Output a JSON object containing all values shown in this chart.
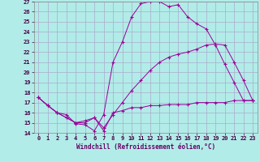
{
  "xlabel": "Windchill (Refroidissement éolien,°C)",
  "background_color": "#b2ece8",
  "grid_color": "#aaaacc",
  "line_color": "#990099",
  "xlim": [
    -0.5,
    23.5
  ],
  "ylim": [
    14,
    27
  ],
  "yticks": [
    14,
    15,
    16,
    17,
    18,
    19,
    20,
    21,
    22,
    23,
    24,
    25,
    26,
    27
  ],
  "xticks": [
    0,
    1,
    2,
    3,
    4,
    5,
    6,
    7,
    8,
    9,
    10,
    11,
    12,
    13,
    14,
    15,
    16,
    17,
    18,
    19,
    20,
    21,
    22,
    23
  ],
  "lines": [
    {
      "x": [
        0,
        1,
        2,
        3,
        4,
        5,
        6,
        7,
        8,
        9,
        10,
        11,
        12,
        13,
        14,
        15,
        16,
        17,
        18,
        19,
        20,
        21,
        22,
        23
      ],
      "y": [
        17.5,
        16.7,
        16.0,
        15.8,
        14.9,
        14.8,
        14.2,
        15.8,
        21.0,
        23.0,
        25.5,
        26.8,
        27.0,
        27.0,
        26.5,
        26.7,
        25.5,
        24.8,
        24.3,
        22.7,
        20.8,
        19.0,
        17.2,
        17.2
      ]
    },
    {
      "x": [
        0,
        1,
        2,
        3,
        4,
        5,
        6,
        7,
        8,
        9,
        10,
        11,
        12,
        13,
        14,
        15,
        16,
        17,
        18,
        19,
        20,
        21,
        22,
        23
      ],
      "y": [
        17.5,
        16.7,
        16.0,
        15.5,
        15.0,
        15.0,
        15.5,
        14.2,
        16.0,
        16.2,
        16.5,
        16.5,
        16.7,
        16.7,
        16.8,
        16.8,
        16.8,
        17.0,
        17.0,
        17.0,
        17.0,
        17.2,
        17.2,
        17.2
      ]
    },
    {
      "x": [
        0,
        1,
        2,
        3,
        4,
        5,
        6,
        7,
        8,
        9,
        10,
        11,
        12,
        13,
        14,
        15,
        16,
        17,
        18,
        19,
        20,
        21,
        22,
        23
      ],
      "y": [
        17.5,
        16.7,
        16.0,
        15.5,
        15.0,
        15.2,
        15.5,
        14.5,
        15.8,
        17.0,
        18.2,
        19.2,
        20.2,
        21.0,
        21.5,
        21.8,
        22.0,
        22.3,
        22.7,
        22.8,
        22.7,
        21.0,
        19.2,
        17.2
      ]
    }
  ]
}
